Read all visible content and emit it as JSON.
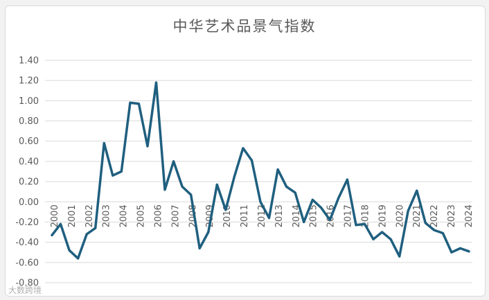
{
  "chart_data": {
    "type": "line",
    "title": "中华艺术品景气指数",
    "xlabel": "",
    "ylabel": "",
    "ylim": [
      -0.8,
      1.4
    ],
    "yticks": [
      "1.40",
      "1.20",
      "1.00",
      "0.80",
      "0.60",
      "0.40",
      "0.20",
      "0.00",
      "-0.20",
      "-0.40",
      "-0.60",
      "-0.80"
    ],
    "ytick_values": [
      1.4,
      1.2,
      1.0,
      0.8,
      0.6,
      0.4,
      0.2,
      0.0,
      -0.2,
      -0.4,
      -0.6,
      -0.8
    ],
    "xticks": [
      "2000",
      "2001",
      "2002",
      "2003",
      "2004",
      "2005",
      "2006",
      "2007",
      "2008",
      "2009",
      "2010",
      "2011",
      "2012",
      "2013",
      "2014",
      "2015",
      "2016",
      "2017",
      "2018",
      "2019",
      "2020",
      "2021",
      "2022",
      "2023",
      "2024"
    ],
    "grid": true,
    "line_color": "#1f5f7f",
    "series": [
      {
        "name": "",
        "values": [
          -0.33,
          -0.22,
          -0.48,
          -0.56,
          -0.32,
          -0.26,
          0.58,
          0.26,
          0.3,
          0.98,
          0.97,
          0.55,
          1.18,
          0.12,
          0.4,
          0.15,
          0.07,
          -0.46,
          -0.3,
          0.17,
          -0.08,
          0.25,
          0.53,
          0.41,
          0.0,
          -0.16,
          0.32,
          0.15,
          0.09,
          -0.2,
          0.02,
          -0.06,
          -0.18,
          0.04,
          0.22,
          -0.23,
          -0.22,
          -0.37,
          -0.3,
          -0.37,
          -0.54,
          -0.09,
          0.11,
          -0.21,
          -0.28,
          -0.31,
          -0.5,
          -0.46,
          -0.49
        ]
      }
    ]
  },
  "watermark": "大数跨境"
}
